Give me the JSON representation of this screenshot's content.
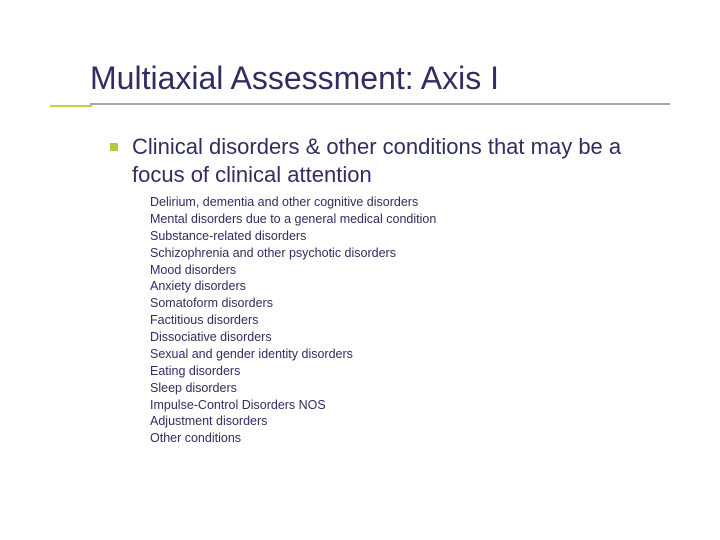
{
  "colors": {
    "title": "#2e2e60",
    "underline": "#a7a7a7",
    "accent": "#c4d24a",
    "bullet": "#b9c93e",
    "subtitle": "#2e2e60",
    "item": "#2e2e60",
    "background": "#ffffff"
  },
  "typography": {
    "title_fontsize": 32,
    "subtitle_fontsize": 22,
    "item_fontsize": 12.5,
    "font_family": "Verdana"
  },
  "title": "Multiaxial Assessment: Axis I",
  "subtitle": "Clinical disorders & other conditions that may be a focus of clinical attention",
  "items": [
    "Delirium, dementia and other cognitive disorders",
    "Mental disorders due to a general medical condition",
    "Substance-related disorders",
    "Schizophrenia and other psychotic disorders",
    "Mood disorders",
    "Anxiety disorders",
    "Somatoform disorders",
    "Factitious disorders",
    "Dissociative disorders",
    "Sexual and gender identity disorders",
    "Eating disorders",
    "Sleep disorders",
    "Impulse-Control Disorders NOS",
    "Adjustment disorders",
    "Other conditions"
  ]
}
